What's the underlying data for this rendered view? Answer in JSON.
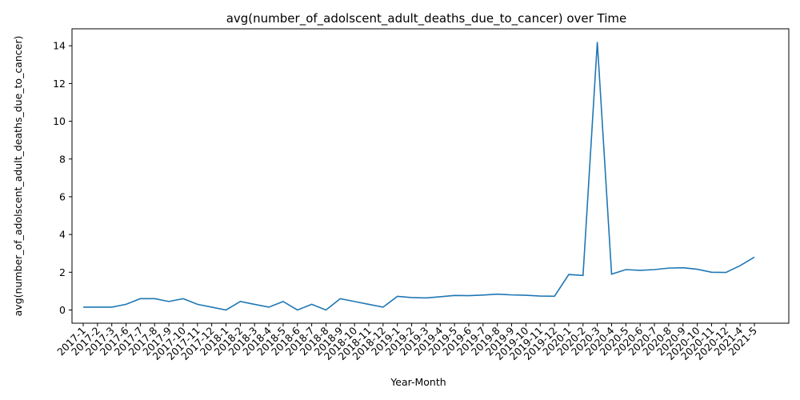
{
  "chart_data": {
    "type": "line",
    "title": "avg(number_of_adolscent_adult_deaths_due_to_cancer) over Time",
    "xlabel": "Year-Month",
    "ylabel": "avg(number_of_adolscent_adult_deaths_due_to_cancer)",
    "ylim": [
      -0.7,
      14.9
    ],
    "yticks": [
      0,
      2,
      4,
      6,
      8,
      10,
      12,
      14
    ],
    "grid": false,
    "line_color": "#1f77b4",
    "categories": [
      "2017-1",
      "2017-2",
      "2017-3",
      "2017-6",
      "2017-7",
      "2017-8",
      "2017-9",
      "2017-10",
      "2017-11",
      "2017-12",
      "2018-1",
      "2018-2",
      "2018-3",
      "2018-4",
      "2018-5",
      "2018-6",
      "2018-7",
      "2018-8",
      "2018-9",
      "2018-10",
      "2018-11",
      "2018-12",
      "2019-1",
      "2019-2",
      "2019-3",
      "2019-4",
      "2019-5",
      "2019-6",
      "2019-7",
      "2019-8",
      "2019-9",
      "2019-10",
      "2019-11",
      "2019-12",
      "2020-1",
      "2020-2",
      "2020-3",
      "2020-4",
      "2020-5",
      "2020-6",
      "2020-7",
      "2020-8",
      "2020-9",
      "2020-10",
      "2020-11",
      "2020-12",
      "2021-4",
      "2021-5"
    ],
    "values": [
      0.15,
      0.15,
      0.15,
      0.3,
      0.6,
      0.6,
      0.45,
      0.6,
      0.3,
      0.15,
      0.0,
      0.45,
      0.3,
      0.15,
      0.45,
      0.0,
      0.3,
      0.0,
      0.6,
      0.45,
      0.3,
      0.15,
      0.72,
      0.66,
      0.64,
      0.7,
      0.77,
      0.76,
      0.79,
      0.84,
      0.8,
      0.78,
      0.74,
      0.73,
      1.88,
      1.83,
      14.2,
      1.9,
      2.14,
      2.1,
      2.14,
      2.22,
      2.24,
      2.16,
      2.0,
      1.99,
      2.35,
      2.8
    ]
  }
}
